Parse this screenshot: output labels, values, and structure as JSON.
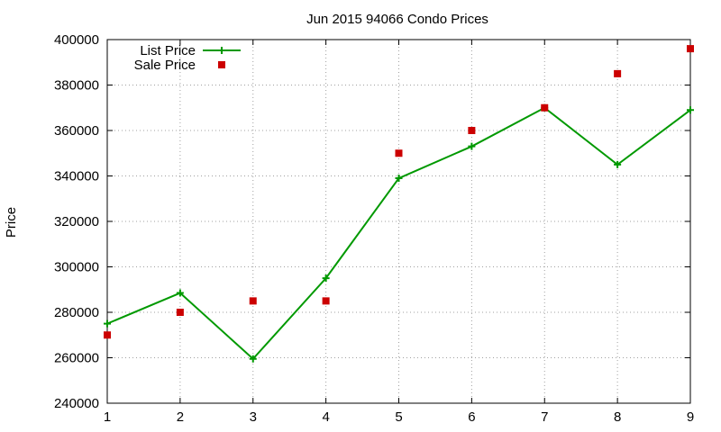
{
  "chart_data": {
    "type": "line",
    "title": "Jun 2015 94066 Condo Prices",
    "xlabel": "",
    "ylabel": "Price",
    "x": [
      1,
      2,
      3,
      4,
      5,
      6,
      7,
      8,
      9
    ],
    "xlim": [
      1,
      9
    ],
    "ylim": [
      240000,
      400000
    ],
    "xticks": [
      "1",
      "2",
      "3",
      "4",
      "5",
      "6",
      "7",
      "8",
      "9"
    ],
    "yticks": [
      "240000",
      "260000",
      "280000",
      "300000",
      "320000",
      "340000",
      "360000",
      "380000",
      "400000"
    ],
    "grid": true,
    "legend_position": "top-left",
    "series": [
      {
        "name": "List Price",
        "style": "linespoints",
        "marker": "plus",
        "color": "#009900",
        "values": [
          275000,
          288500,
          259500,
          295000,
          339000,
          353000,
          370000,
          345000,
          369000
        ]
      },
      {
        "name": "Sale Price",
        "style": "points",
        "marker": "square",
        "color": "#cc0000",
        "values": [
          270000,
          280000,
          285000,
          285000,
          350000,
          360000,
          370000,
          385000,
          396000
        ]
      }
    ]
  }
}
